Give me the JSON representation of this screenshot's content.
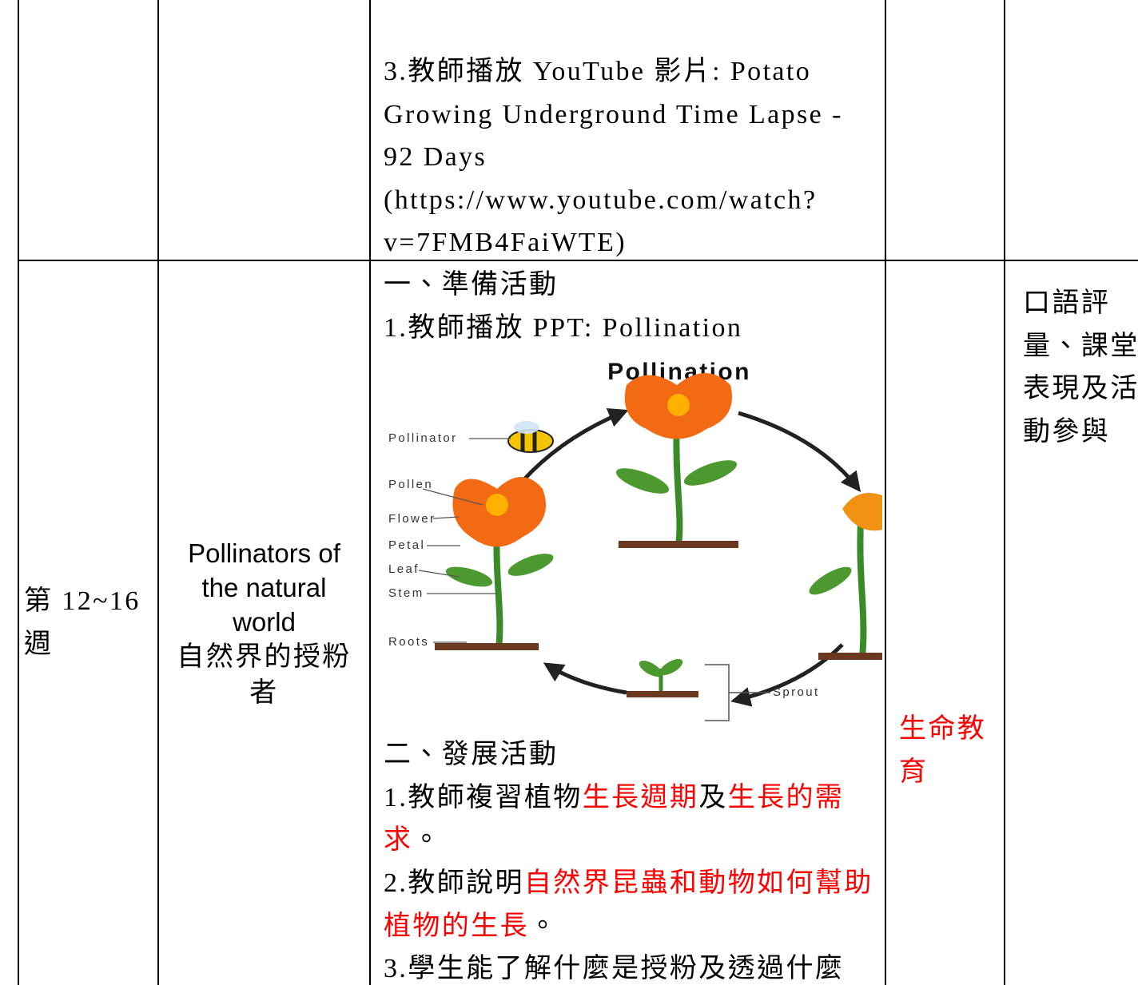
{
  "table": {
    "rows": [
      {
        "activities": [
          {
            "spans": [
              {
                "text": "3.教師播放 YouTube 影片: Potato Growing Underground Time Lapse - 92 Days"
              }
            ]
          },
          {
            "spans": [
              {
                "text": "(https://www.youtube.com/watch?v=7FMB4FaiWTE)"
              }
            ]
          }
        ]
      },
      {
        "week": "第 12~16 週",
        "topic": [
          "Pollinators of the natural world",
          "自然界的授粉者"
        ],
        "activities": [
          {
            "spans": [
              {
                "text": "一、準備活動"
              }
            ]
          },
          {
            "spans": [
              {
                "text": "1.教師播放 PPT: Pollination"
              }
            ]
          },
          {
            "figure": {
              "title": "Pollination",
              "labels": [
                "Pollinator",
                "Pollen",
                "Flower",
                "Petal",
                "Leaf",
                "Stem",
                "Roots",
                "Sprout"
              ]
            }
          },
          {
            "spans": [
              {
                "text": "二、發展活動"
              }
            ]
          },
          {
            "spans": [
              {
                "text": "1.教師複習植物"
              },
              {
                "text": "生長週期",
                "color": "#ff0000"
              },
              {
                "text": "及"
              },
              {
                "text": "生長的需求",
                "color": "#ff0000"
              },
              {
                "text": "。"
              }
            ]
          },
          {
            "spans": [
              {
                "text": "2.教師說明"
              },
              {
                "text": "自然界昆蟲和動物如何幫助植物的生長",
                "color": "#ff0000"
              },
              {
                "text": "。"
              }
            ]
          },
          {
            "spans": [
              {
                "text": "3.學生能了解什麼是授粉及透過什麼"
              }
            ]
          }
        ],
        "issue": {
          "text": "生命教育",
          "color": "#ff0000"
        },
        "assessment": "口語評量、課堂表現及活動參與"
      }
    ]
  }
}
